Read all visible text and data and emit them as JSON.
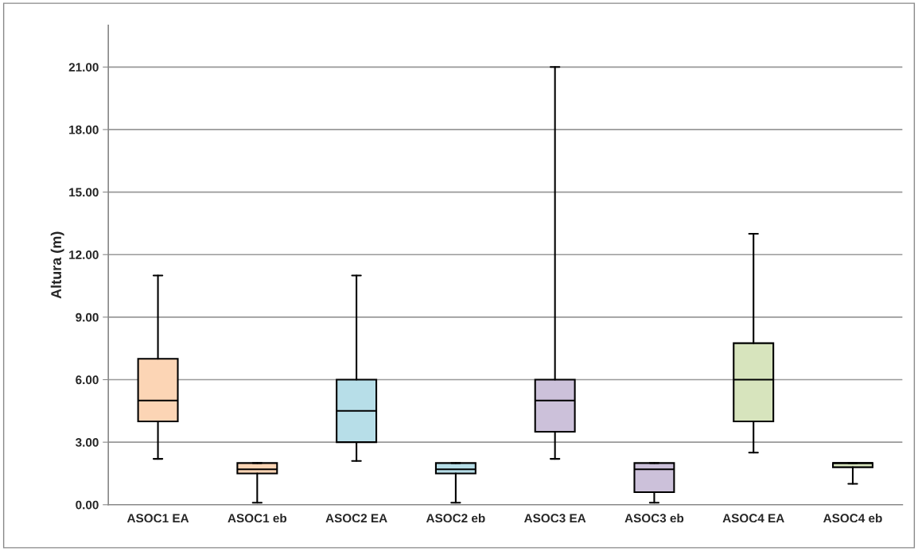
{
  "chart_data": {
    "type": "box",
    "ylabel": "Altura (m)",
    "categories": [
      "ASOC1 EA",
      "ASOC1 eb",
      "ASOC2 EA",
      "ASOC2 eb",
      "ASOC3 EA",
      "ASOC3 eb",
      "ASOC4 EA",
      "ASOC4 eb"
    ],
    "colors": [
      "#fcd5b5",
      "#fcd5b5",
      "#b7dee8",
      "#b7dee8",
      "#ccc1da",
      "#ccc1da",
      "#d7e4bd",
      "#d7e4bd"
    ],
    "boxes": [
      {
        "low": 2.2,
        "q1": 4,
        "median": 5,
        "q3": 7,
        "high": 11
      },
      {
        "low": 0.1,
        "q1": 1.5,
        "median": 1.7,
        "q3": 2.0,
        "high": 2.0
      },
      {
        "low": 2.1,
        "q1": 3,
        "median": 4.5,
        "q3": 6,
        "high": 11
      },
      {
        "low": 0.1,
        "q1": 1.5,
        "median": 1.7,
        "q3": 2.0,
        "high": 2.0
      },
      {
        "low": 2.2,
        "q1": 3.5,
        "median": 5,
        "q3": 6,
        "high": 21
      },
      {
        "low": 0.1,
        "q1": 0.6,
        "median": 1.7,
        "q3": 2.0,
        "high": 2.0
      },
      {
        "low": 2.5,
        "q1": 4,
        "median": 6,
        "q3": 7.75,
        "high": 13
      },
      {
        "low": 1.0,
        "q1": 1.8,
        "median": 2.0,
        "q3": 2.0,
        "high": 2.0
      }
    ],
    "ylim": [
      0,
      23
    ],
    "yticks": [
      {
        "value": 0,
        "label": "0.00"
      },
      {
        "value": 3,
        "label": "3.00"
      },
      {
        "value": 6,
        "label": "6.00"
      },
      {
        "value": 9,
        "label": "9.00"
      },
      {
        "value": 12,
        "label": "12.00"
      },
      {
        "value": 15,
        "label": "15.00"
      },
      {
        "value": 18,
        "label": "18.00"
      },
      {
        "value": 21,
        "label": "21.00"
      }
    ],
    "grid": "y",
    "legend": false
  }
}
